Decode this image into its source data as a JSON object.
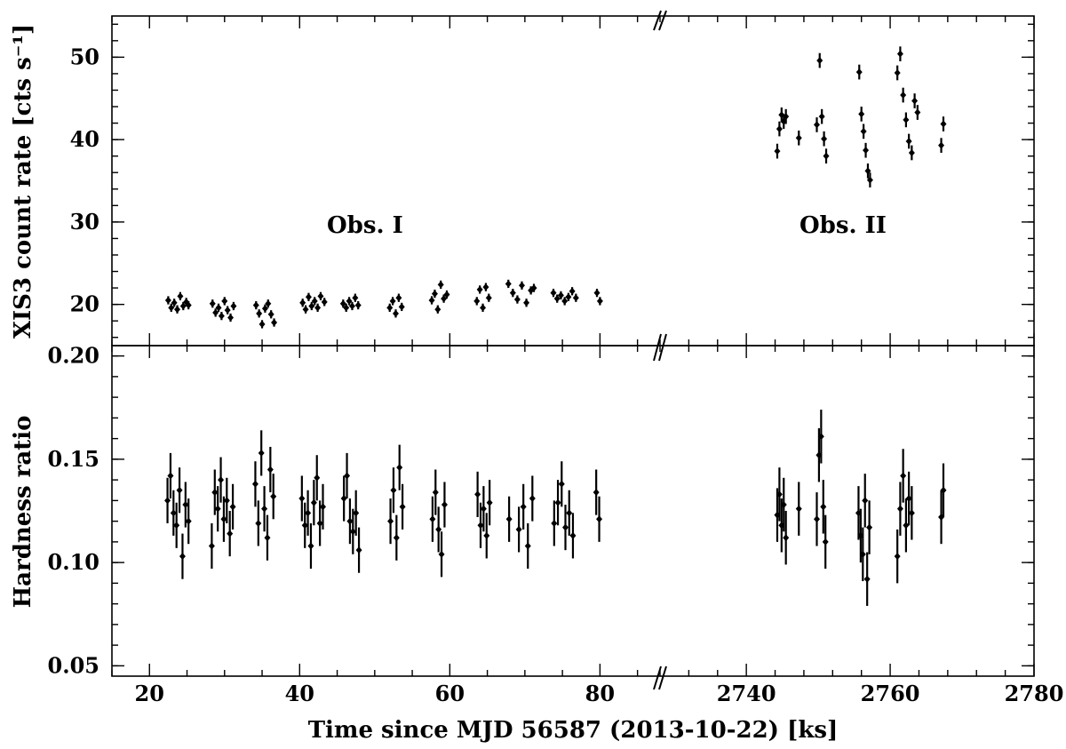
{
  "chart_data": {
    "type": "scatter",
    "xlabel": "Time since MJD 56587 (2013-10-22) [ks]",
    "x_tick_labels": [
      "20",
      "40",
      "60",
      "80",
      "2740",
      "2760",
      "2780"
    ],
    "broken_x_axis": true,
    "x_segments": [
      {
        "xlim": [
          15,
          88
        ],
        "ticks": [
          20,
          40,
          60,
          80
        ]
      },
      {
        "xlim": [
          2728,
          2780
        ],
        "ticks": [
          2740,
          2760,
          2780
        ]
      }
    ],
    "panels": [
      {
        "name": "count_rate",
        "ylabel": "XIS3 count rate [cts s⁻¹]",
        "ylim": [
          15,
          55
        ],
        "y_ticks": [
          20,
          30,
          40,
          50
        ],
        "y_tick_labels": [
          "20",
          "30",
          "40",
          "50"
        ],
        "annotations": [
          "Obs. I",
          "Obs. II"
        ],
        "series": [
          {
            "x": [
              22.5,
              22.9,
              23.3,
              23.7,
              24.1,
              24.5,
              24.9,
              25.2,
              28.4,
              28.8,
              29.2,
              29.6,
              30.0,
              30.4,
              30.8,
              31.2,
              34.2,
              34.6,
              35.0,
              35.4,
              35.8,
              36.2,
              36.6,
              40.4,
              40.8,
              41.2,
              41.6,
              42.0,
              42.4,
              42.8,
              43.3,
              45.8,
              46.2,
              46.6,
              47.0,
              47.4,
              47.8,
              52.0,
              52.4,
              52.8,
              53.2,
              53.6,
              57.6,
              58.0,
              58.4,
              58.8,
              59.2,
              59.6,
              63.6,
              64.0,
              64.4,
              64.8,
              65.2,
              67.8,
              68.4,
              69.0,
              69.6,
              70.2,
              70.8,
              71.2,
              73.8,
              74.3,
              74.8,
              75.3,
              75.8,
              76.3,
              76.8,
              79.6,
              80.0
            ],
            "y": [
              20.5,
              19.6,
              20.2,
              19.4,
              21.0,
              19.8,
              20.3,
              19.9,
              20.1,
              19.0,
              19.6,
              18.6,
              20.4,
              19.3,
              18.4,
              19.8,
              19.9,
              18.9,
              17.6,
              19.5,
              20.1,
              18.8,
              17.8,
              20.2,
              19.4,
              20.9,
              19.8,
              20.4,
              19.6,
              21.0,
              20.3,
              20.1,
              19.6,
              20.4,
              19.8,
              20.8,
              19.9,
              19.6,
              20.4,
              18.9,
              20.8,
              19.7,
              20.5,
              21.3,
              19.4,
              22.4,
              20.7,
              21.2,
              20.4,
              21.8,
              19.6,
              22.1,
              20.8,
              22.5,
              21.4,
              20.6,
              22.3,
              20.2,
              21.7,
              22.0,
              21.4,
              20.7,
              21.1,
              20.4,
              20.9,
              21.6,
              20.8,
              21.4,
              20.4
            ],
            "y_err": 0.5
          }
        ]
      },
      {
        "name": "hardness_ratio",
        "ylabel": "Hardness ratio",
        "ylim": [
          0.045,
          0.205
        ],
        "y_ticks": [
          0.05,
          0.1,
          0.15,
          0.2
        ],
        "y_tick_labels": [
          "0.05",
          "0.10",
          "0.15",
          "0.20"
        ],
        "series": [
          {
            "x": [
              22.4,
              22.8,
              23.2,
              23.6,
              24.0,
              24.4,
              24.8,
              25.2,
              28.3,
              28.7,
              29.1,
              29.5,
              29.9,
              30.3,
              30.7,
              31.1,
              34.1,
              34.5,
              34.9,
              35.3,
              35.7,
              36.1,
              36.5,
              40.3,
              40.7,
              41.1,
              41.5,
              41.9,
              42.3,
              42.7,
              43.1,
              45.9,
              46.3,
              46.7,
              47.1,
              47.5,
              47.9,
              52.1,
              52.5,
              52.9,
              53.3,
              53.7,
              57.7,
              58.1,
              58.5,
              58.9,
              59.3,
              63.7,
              64.1,
              64.5,
              64.9,
              65.3,
              67.9,
              69.2,
              69.8,
              70.4,
              71.0,
              73.9,
              74.4,
              74.9,
              75.4,
              75.9,
              76.4,
              79.5,
              79.9
            ],
            "y": [
              0.13,
              0.142,
              0.124,
              0.118,
              0.135,
              0.103,
              0.128,
              0.12,
              0.108,
              0.134,
              0.126,
              0.14,
              0.121,
              0.13,
              0.114,
              0.127,
              0.138,
              0.119,
              0.153,
              0.126,
              0.112,
              0.145,
              0.132,
              0.131,
              0.118,
              0.124,
              0.108,
              0.129,
              0.141,
              0.119,
              0.127,
              0.131,
              0.142,
              0.12,
              0.115,
              0.124,
              0.106,
              0.12,
              0.135,
              0.112,
              0.146,
              0.127,
              0.121,
              0.134,
              0.116,
              0.104,
              0.128,
              0.133,
              0.118,
              0.126,
              0.113,
              0.129,
              0.121,
              0.116,
              0.127,
              0.108,
              0.131,
              0.119,
              0.129,
              0.138,
              0.117,
              0.124,
              0.113,
              0.134,
              0.121
            ],
            "y_err": 0.011
          }
        ]
      }
    ],
    "obs2_count_rate": {
      "x": [
        2744.3,
        2744.6,
        2744.9,
        2745.2,
        2745.5,
        2747.3,
        2749.8,
        2750.2,
        2750.5,
        2750.8,
        2751.1,
        2755.7,
        2756.0,
        2756.3,
        2756.6,
        2756.9,
        2757.2,
        2761.0,
        2761.4,
        2761.8,
        2762.2,
        2762.6,
        2763.0,
        2763.4,
        2763.8,
        2767.1,
        2767.4
      ],
      "y": [
        38.6,
        41.3,
        43.0,
        42.2,
        42.8,
        40.2,
        41.8,
        49.6,
        42.8,
        40.1,
        38.0,
        48.2,
        43.1,
        41.0,
        38.7,
        36.2,
        35.1,
        48.1,
        50.4,
        45.4,
        42.4,
        39.8,
        38.4,
        44.7,
        43.3,
        39.3,
        41.9
      ],
      "y_err": 0.9
    },
    "obs2_hardness": {
      "x": [
        2744.3,
        2744.6,
        2744.9,
        2745.2,
        2745.5,
        2747.3,
        2749.8,
        2750.1,
        2750.4,
        2750.7,
        2751.0,
        2755.6,
        2755.9,
        2756.2,
        2756.5,
        2756.8,
        2757.1,
        2761.0,
        2761.4,
        2761.8,
        2762.2,
        2762.6,
        2763.0,
        2767.1,
        2767.4
      ],
      "y": [
        0.123,
        0.133,
        0.118,
        0.128,
        0.112,
        0.126,
        0.121,
        0.152,
        0.161,
        0.127,
        0.11,
        0.124,
        0.113,
        0.104,
        0.13,
        0.092,
        0.117,
        0.103,
        0.126,
        0.142,
        0.118,
        0.131,
        0.124,
        0.122,
        0.135
      ],
      "y_err": 0.013
    }
  }
}
